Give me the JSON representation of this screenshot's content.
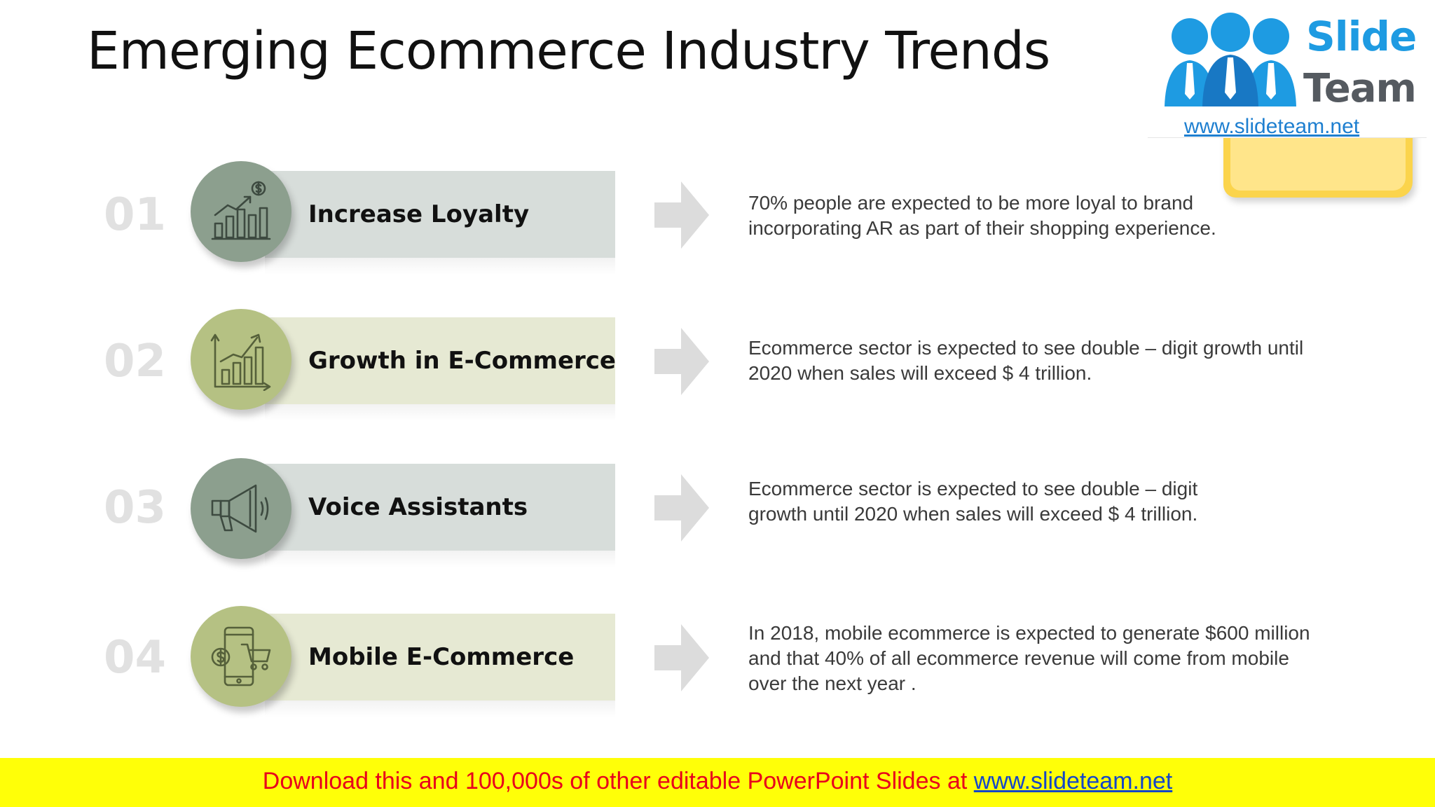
{
  "title": "Emerging Ecommerce Industry Trends",
  "logo": {
    "brand_top": "Slide",
    "brand_bottom": "Team",
    "url": "www.slideteam.net",
    "colors": {
      "blue": "#1e9be2",
      "gray": "#555a60",
      "note": "#fbd44c"
    }
  },
  "items": [
    {
      "number": "01",
      "label": "Increase Loyalty",
      "icon": "growth-chart-dollar-icon",
      "band_color": "#d7ddda",
      "circle_color": "#8c9f8e",
      "description_lines": [
        "70% people are expected to be more loyal to brand",
        "incorporating AR as part of their shopping experience."
      ]
    },
    {
      "number": "02",
      "label": "Growth in E-Commerce",
      "icon": "bar-chart-arrow-icon",
      "band_color": "#e6e9d3",
      "circle_color": "#b5c183",
      "description_lines": [
        "Ecommerce sector is expected to see double – digit growth until",
        "2020 when sales will exceed $ 4  trillion."
      ]
    },
    {
      "number": "03",
      "label": "Voice Assistants",
      "icon": "megaphone-icon",
      "band_color": "#d7ddda",
      "circle_color": "#8c9f8e",
      "description_lines": [
        "Ecommerce sector is expected to see double – digit",
        "growth until 2020 when sales will exceed $ 4  trillion."
      ]
    },
    {
      "number": "04",
      "label": "Mobile E-Commerce",
      "icon": "mobile-cart-dollar-icon",
      "band_color": "#e6e9d3",
      "circle_color": "#b5c183",
      "description_lines": [
        "In 2018, mobile ecommerce is expected to generate $600 million",
        "and that 40% of all ecommerce revenue will come from mobile",
        "over the next year ."
      ]
    }
  ],
  "footer": {
    "text": "Download this and 100,000s of other editable PowerPoint Slides at ",
    "link": "www.slideteam.net",
    "background": "#ffff08",
    "text_color": "#e8001c",
    "link_color": "#1446c8"
  }
}
